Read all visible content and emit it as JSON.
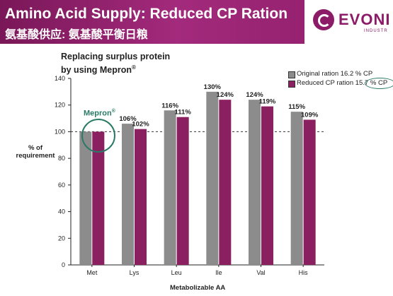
{
  "header": {
    "title_en": "Amino Acid Supply: Reduced CP Ration",
    "title_cn": "氨基酸供应: 氨基酸平衡日粮",
    "logo_text": "EVONI",
    "logo_sub": "INDUSTR"
  },
  "colors": {
    "header": "#8c1c68",
    "original": "#8c8c8c",
    "reduced": "#8b2060",
    "accent": "#2a7a66"
  },
  "annotation": {
    "product": "Mepron"
  },
  "chart_data": {
    "type": "bar",
    "title": "Replacing surplus protein by using Mepron®",
    "title_line1": "Replacing surplus protein",
    "title_line2": "by using Mepron",
    "title_sup": "®",
    "xlabel": "Metabolizable AA",
    "ylabel_line1": "% of",
    "ylabel_line2": "requirement",
    "ylim": [
      0,
      140
    ],
    "yticks": [
      0,
      20,
      40,
      60,
      80,
      100,
      120,
      140
    ],
    "reference_line": 100,
    "grid": false,
    "legend_position": "top-right",
    "categories": [
      "Met",
      "Lys",
      "Leu",
      "Ile",
      "Val",
      "His"
    ],
    "series": [
      {
        "name": "Original ration 16.2 % CP",
        "name_main": "Original ration 16.2 % CP",
        "values": [
          100,
          106,
          116,
          130,
          124,
          115
        ],
        "labels": [
          "",
          "106%",
          "116%",
          "130%",
          "124%",
          "115%"
        ]
      },
      {
        "name": "Reduced CP ration 15.7 % CP",
        "name_main": "Reduced CP ration",
        "name_circled": "15.7 % CP",
        "values": [
          100,
          102,
          111,
          124,
          119,
          109
        ],
        "labels": [
          "",
          "102%",
          "111%",
          "124%",
          "119%",
          "109%"
        ]
      }
    ]
  }
}
